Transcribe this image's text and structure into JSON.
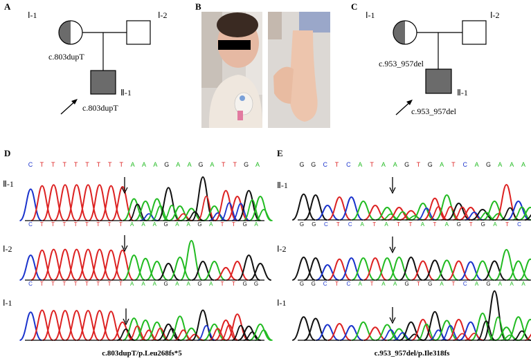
{
  "panels": {
    "A": {
      "letter": "A",
      "gen1_left": "Ⅰ-1",
      "gen1_right": "Ⅰ-2",
      "gen2": "Ⅱ-1",
      "mother_variant": "c.803dupT",
      "proband_variant": "c.803dupT"
    },
    "B": {
      "letter": "B"
    },
    "C": {
      "letter": "C",
      "gen1_left": "Ⅰ-1",
      "gen1_right": "Ⅰ-2",
      "gen2": "Ⅱ-1",
      "mother_variant": "c.953_957del",
      "proband_variant": "c.953_957del"
    },
    "D": {
      "letter": "D",
      "ref_sequence": "CTTTTTTTTAAAGAAGATTGA",
      "rows": [
        {
          "label": "Ⅱ-1",
          "bases": "CTTTTTTTTAAAGAAGATTGA"
        },
        {
          "label": "Ⅰ-2",
          "bases": "CTTTTTTTTAAAGAAGATTGG"
        },
        {
          "label": "Ⅰ-1",
          "bases": ""
        }
      ],
      "caption": "c.803dupT/p.Leu268fs*5"
    },
    "E": {
      "letter": "E",
      "ref_sequence": "GGCTCATAAGTGATCAGAAA",
      "rows": [
        {
          "label": "Ⅱ-1",
          "bases": "GGCTCATATTATAGTGATC"
        },
        {
          "label": "Ⅰ-2",
          "bases": "GGCTCATAAGTGATCAGAAA"
        },
        {
          "label": "Ⅰ-1",
          "bases": ""
        }
      ],
      "caption": "c.953_957del/p.Ile318fs"
    }
  },
  "colors": {
    "A": "#22bb22",
    "C": "#1a33cc",
    "G": "#111111",
    "T": "#dd2222",
    "affected_fill": "#6b6b6b",
    "carrier_fill": "#6b6b6b"
  }
}
